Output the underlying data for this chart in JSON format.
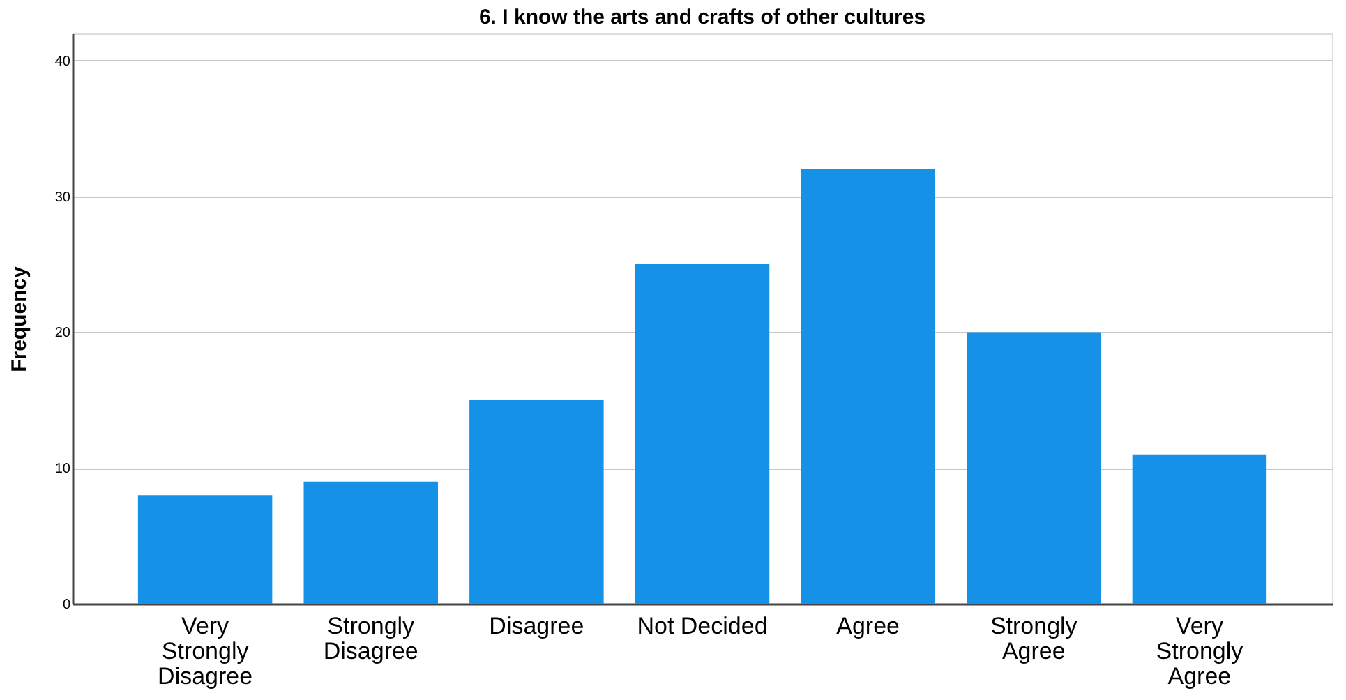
{
  "chart_data": {
    "type": "bar",
    "title": "6. I know the arts and crafts of other cultures",
    "ylabel": "Frequency",
    "categories": [
      "Very Strongly Disagree",
      "Strongly Disagree",
      "Disagree",
      "Not Decided",
      "Agree",
      "Strongly Agree",
      "Very Strongly Agree"
    ],
    "values": [
      8,
      9,
      15,
      25,
      32,
      20,
      11
    ],
    "color": "#1591e8",
    "ylim": [
      0,
      42
    ],
    "yticks": [
      0,
      10,
      20,
      30,
      40
    ],
    "grid": "y"
  }
}
